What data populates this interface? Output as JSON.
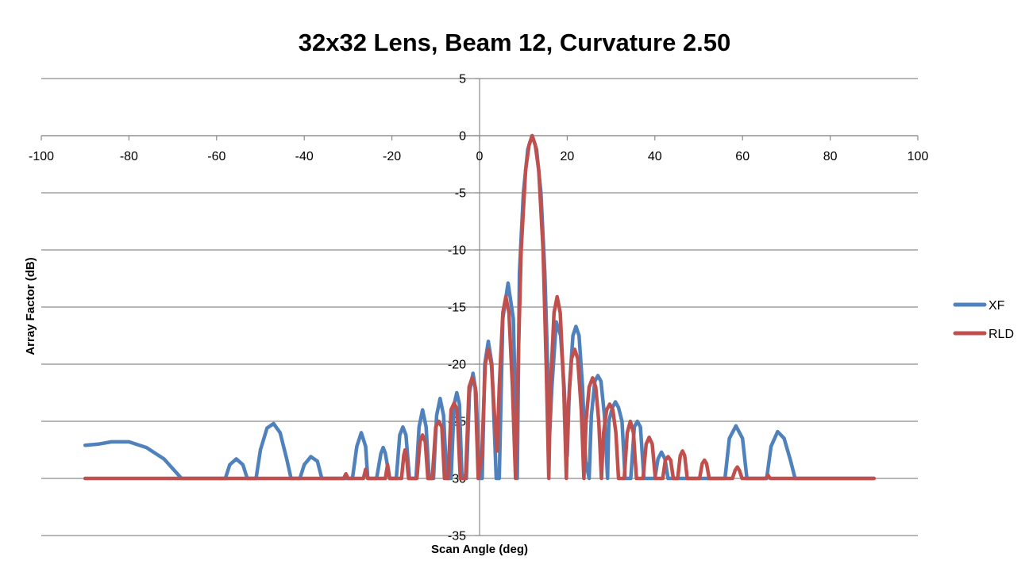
{
  "chart_data": {
    "type": "line",
    "title": "32x32 Lens, Beam 12, Curvature 2.50",
    "xlabel": "Scan Angle (deg)",
    "ylabel": "Array Factor (dB)",
    "xlim": [
      -100,
      100
    ],
    "ylim": [
      -35,
      5
    ],
    "x_ticks": [
      -100,
      -80,
      -60,
      -40,
      -20,
      0,
      20,
      40,
      60,
      80,
      100
    ],
    "y_ticks": [
      5,
      0,
      -5,
      -10,
      -15,
      -20,
      -25,
      -30,
      -35
    ],
    "grid": "horizontal",
    "legend_position": "right",
    "series": [
      {
        "name": "XF",
        "color": "#4F81BD",
        "points": [
          [
            -90,
            -27.1
          ],
          [
            -87,
            -27.0
          ],
          [
            -84,
            -26.8
          ],
          [
            -80,
            -26.8
          ],
          [
            -76,
            -27.3
          ],
          [
            -72,
            -28.3
          ],
          [
            -68,
            -30
          ],
          [
            -58,
            -30
          ],
          [
            -57,
            -28.8
          ],
          [
            -55.5,
            -28.3
          ],
          [
            -54,
            -28.8
          ],
          [
            -53,
            -30
          ],
          [
            -51,
            -30
          ],
          [
            -50,
            -27.5
          ],
          [
            -48.5,
            -25.6
          ],
          [
            -47,
            -25.2
          ],
          [
            -45.5,
            -26.0
          ],
          [
            -44,
            -28.3
          ],
          [
            -43,
            -30
          ],
          [
            -41,
            -30
          ],
          [
            -40,
            -28.8
          ],
          [
            -38.5,
            -28.1
          ],
          [
            -37,
            -28.5
          ],
          [
            -36,
            -30
          ],
          [
            -29,
            -30
          ],
          [
            -28,
            -27.2
          ],
          [
            -27,
            -26.0
          ],
          [
            -26,
            -27.2
          ],
          [
            -25.5,
            -30
          ],
          [
            -23.5,
            -30
          ],
          [
            -22.5,
            -27.8
          ],
          [
            -22,
            -27.3
          ],
          [
            -21.5,
            -27.8
          ],
          [
            -20.5,
            -30
          ],
          [
            -19,
            -30
          ],
          [
            -18.2,
            -26.2
          ],
          [
            -17.5,
            -25.5
          ],
          [
            -16.8,
            -26.2
          ],
          [
            -16,
            -30
          ],
          [
            -14.5,
            -30
          ],
          [
            -13.8,
            -25.5
          ],
          [
            -13,
            -24.0
          ],
          [
            -12.2,
            -25.5
          ],
          [
            -11.5,
            -30
          ],
          [
            -10.5,
            -30
          ],
          [
            -9.8,
            -24.5
          ],
          [
            -9,
            -23.0
          ],
          [
            -8.2,
            -24.5
          ],
          [
            -7.5,
            -30
          ],
          [
            -6.5,
            -30
          ],
          [
            -5.8,
            -23.5
          ],
          [
            -5.2,
            -22.5
          ],
          [
            -4.6,
            -23.5
          ],
          [
            -4,
            -30
          ],
          [
            -3,
            -30
          ],
          [
            -2.3,
            -22.5
          ],
          [
            -1.5,
            -20.8
          ],
          [
            -0.8,
            -22.5
          ],
          [
            0,
            -30
          ],
          [
            0.6,
            -30
          ],
          [
            1.2,
            -20.0
          ],
          [
            2,
            -18.0
          ],
          [
            2.8,
            -20.0
          ],
          [
            3.8,
            -30
          ],
          [
            4.5,
            -30
          ],
          [
            5.3,
            -16.0
          ],
          [
            6.5,
            -12.9
          ],
          [
            7.7,
            -16.0
          ],
          [
            8.6,
            -30
          ],
          [
            9.1,
            -12.0
          ],
          [
            10,
            -5.0
          ],
          [
            11,
            -1.2
          ],
          [
            12,
            0.0
          ],
          [
            13,
            -1.2
          ],
          [
            14,
            -5.0
          ],
          [
            14.9,
            -12.0
          ],
          [
            16,
            -26.0
          ],
          [
            16.5,
            -22.0
          ],
          [
            17.5,
            -16.3
          ],
          [
            18.5,
            -17.5
          ],
          [
            19.3,
            -22.0
          ],
          [
            20,
            -28.0
          ],
          [
            20.5,
            -22.0
          ],
          [
            21.3,
            -17.5
          ],
          [
            22,
            -16.7
          ],
          [
            22.7,
            -17.5
          ],
          [
            23.5,
            -22.0
          ],
          [
            24.2,
            -28.5
          ],
          [
            25,
            -30
          ],
          [
            25.5,
            -24.5
          ],
          [
            26.3,
            -21.5
          ],
          [
            27,
            -21.0
          ],
          [
            27.7,
            -21.5
          ],
          [
            28.5,
            -24.5
          ],
          [
            29.2,
            -30
          ],
          [
            29.5,
            -25.0
          ],
          [
            30.3,
            -23.8
          ],
          [
            31,
            -23.3
          ],
          [
            31.7,
            -23.8
          ],
          [
            32.5,
            -25.0
          ],
          [
            33.2,
            -30
          ],
          [
            34.5,
            -30
          ],
          [
            35.3,
            -25.5
          ],
          [
            36,
            -25.0
          ],
          [
            36.7,
            -25.5
          ],
          [
            37.5,
            -30
          ],
          [
            40,
            -30
          ],
          [
            40.7,
            -28.3
          ],
          [
            41.5,
            -27.7
          ],
          [
            42.3,
            -28.3
          ],
          [
            43,
            -30
          ],
          [
            56,
            -30
          ],
          [
            57,
            -26.5
          ],
          [
            58.5,
            -25.4
          ],
          [
            60,
            -26.5
          ],
          [
            61,
            -30
          ],
          [
            65.5,
            -30
          ],
          [
            66.5,
            -27.2
          ],
          [
            68,
            -25.9
          ],
          [
            69.5,
            -26.5
          ],
          [
            71,
            -28.5
          ],
          [
            72,
            -30
          ],
          [
            90,
            -30
          ]
        ]
      },
      {
        "name": "RLD",
        "color": "#C0504D",
        "points": [
          [
            -90,
            -30
          ],
          [
            -31,
            -30
          ],
          [
            -30.5,
            -29.6
          ],
          [
            -30,
            -30
          ],
          [
            -26.5,
            -30
          ],
          [
            -26,
            -29.2
          ],
          [
            -25.5,
            -30
          ],
          [
            -21.5,
            -30
          ],
          [
            -21,
            -28.8
          ],
          [
            -20.5,
            -30
          ],
          [
            -17.8,
            -30
          ],
          [
            -17.3,
            -28.0
          ],
          [
            -17,
            -27.5
          ],
          [
            -16.7,
            -28.0
          ],
          [
            -16.2,
            -30
          ],
          [
            -14.3,
            -30
          ],
          [
            -13.6,
            -26.8
          ],
          [
            -13,
            -26.2
          ],
          [
            -12.4,
            -26.8
          ],
          [
            -11.8,
            -30
          ],
          [
            -10.8,
            -30
          ],
          [
            -10,
            -25.5
          ],
          [
            -9.3,
            -25.0
          ],
          [
            -8.6,
            -25.5
          ],
          [
            -8,
            -30
          ],
          [
            -7.2,
            -30
          ],
          [
            -6.5,
            -24.0
          ],
          [
            -5.8,
            -23.4
          ],
          [
            -5.1,
            -24.0
          ],
          [
            -4.4,
            -30
          ],
          [
            -3.2,
            -30
          ],
          [
            -2.4,
            -22.0
          ],
          [
            -1.7,
            -21.2
          ],
          [
            -1,
            -22.0
          ],
          [
            -0.3,
            -30
          ],
          [
            0.5,
            -28.0
          ],
          [
            1.3,
            -20.0
          ],
          [
            2,
            -18.7
          ],
          [
            2.7,
            -20.0
          ],
          [
            3.5,
            -25.0
          ],
          [
            4,
            -27.6
          ],
          [
            4.5,
            -22.0
          ],
          [
            5.3,
            -15.5
          ],
          [
            6,
            -14.1
          ],
          [
            6.7,
            -15.5
          ],
          [
            7.5,
            -22.0
          ],
          [
            8.2,
            -30
          ],
          [
            8.8,
            -20.0
          ],
          [
            9.5,
            -10.0
          ],
          [
            10.5,
            -3.0
          ],
          [
            11.3,
            -0.8
          ],
          [
            12,
            0.0
          ],
          [
            12.7,
            -0.8
          ],
          [
            13.5,
            -3.0
          ],
          [
            14.5,
            -10.0
          ],
          [
            15.2,
            -20.0
          ],
          [
            15.8,
            -30
          ],
          [
            16.2,
            -22.0
          ],
          [
            17,
            -15.5
          ],
          [
            17.7,
            -14.1
          ],
          [
            18.4,
            -15.5
          ],
          [
            19.2,
            -22.0
          ],
          [
            19.8,
            -30
          ],
          [
            20.2,
            -24.0
          ],
          [
            21,
            -19.5
          ],
          [
            21.7,
            -18.7
          ],
          [
            22.4,
            -19.5
          ],
          [
            23.2,
            -24.0
          ],
          [
            23.8,
            -30
          ],
          [
            24.3,
            -25.0
          ],
          [
            25,
            -22.0
          ],
          [
            25.8,
            -21.2
          ],
          [
            26.5,
            -22.0
          ],
          [
            27.2,
            -25.0
          ],
          [
            27.8,
            -30
          ],
          [
            28.3,
            -26.0
          ],
          [
            29,
            -24.0
          ],
          [
            29.7,
            -23.5
          ],
          [
            30.4,
            -24.0
          ],
          [
            31.1,
            -26.0
          ],
          [
            31.7,
            -30
          ],
          [
            33,
            -30
          ],
          [
            33.7,
            -26.0
          ],
          [
            34.4,
            -25.0
          ],
          [
            35.1,
            -26.0
          ],
          [
            35.8,
            -30
          ],
          [
            37.3,
            -30
          ],
          [
            38,
            -27.0
          ],
          [
            38.7,
            -26.4
          ],
          [
            39.4,
            -27.0
          ],
          [
            40.1,
            -30
          ],
          [
            41.8,
            -30
          ],
          [
            42.4,
            -28.4
          ],
          [
            43,
            -28.1
          ],
          [
            43.6,
            -28.4
          ],
          [
            44.2,
            -30
          ],
          [
            45.2,
            -30
          ],
          [
            45.8,
            -28.0
          ],
          [
            46.3,
            -27.6
          ],
          [
            46.8,
            -28.0
          ],
          [
            47.4,
            -30
          ],
          [
            50.2,
            -30
          ],
          [
            50.8,
            -28.7
          ],
          [
            51.3,
            -28.4
          ],
          [
            51.8,
            -28.7
          ],
          [
            52.4,
            -30
          ],
          [
            57.7,
            -30
          ],
          [
            58.3,
            -29.3
          ],
          [
            58.8,
            -29.0
          ],
          [
            59.3,
            -29.3
          ],
          [
            59.9,
            -30
          ],
          [
            65.3,
            -30
          ],
          [
            65.8,
            -29.7
          ],
          [
            66.3,
            -30
          ],
          [
            90,
            -30
          ]
        ]
      }
    ]
  }
}
